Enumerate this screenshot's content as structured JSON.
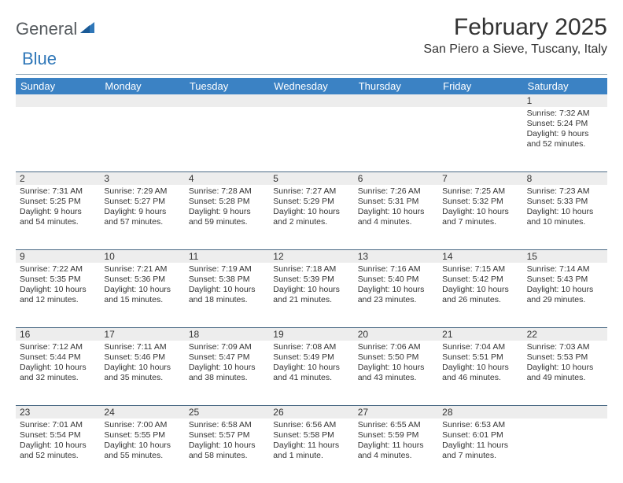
{
  "logo": {
    "text1": "General",
    "text2": "Blue"
  },
  "title": "February 2025",
  "location": "San Piero a Sieve, Tuscany, Italy",
  "colors": {
    "header_bg": "#3b82c4",
    "header_text": "#ffffff",
    "daynum_bg": "#ededed",
    "rule": "#4a6a85",
    "logo_blue": "#2f77b8",
    "logo_gray": "#555a5e"
  },
  "daysOfWeek": [
    "Sunday",
    "Monday",
    "Tuesday",
    "Wednesday",
    "Thursday",
    "Friday",
    "Saturday"
  ],
  "weeks": [
    [
      {
        "n": "",
        "sr": "",
        "ss": "",
        "dl": ""
      },
      {
        "n": "",
        "sr": "",
        "ss": "",
        "dl": ""
      },
      {
        "n": "",
        "sr": "",
        "ss": "",
        "dl": ""
      },
      {
        "n": "",
        "sr": "",
        "ss": "",
        "dl": ""
      },
      {
        "n": "",
        "sr": "",
        "ss": "",
        "dl": ""
      },
      {
        "n": "",
        "sr": "",
        "ss": "",
        "dl": ""
      },
      {
        "n": "1",
        "sr": "Sunrise: 7:32 AM",
        "ss": "Sunset: 5:24 PM",
        "dl": "Daylight: 9 hours and 52 minutes."
      }
    ],
    [
      {
        "n": "2",
        "sr": "Sunrise: 7:31 AM",
        "ss": "Sunset: 5:25 PM",
        "dl": "Daylight: 9 hours and 54 minutes."
      },
      {
        "n": "3",
        "sr": "Sunrise: 7:29 AM",
        "ss": "Sunset: 5:27 PM",
        "dl": "Daylight: 9 hours and 57 minutes."
      },
      {
        "n": "4",
        "sr": "Sunrise: 7:28 AM",
        "ss": "Sunset: 5:28 PM",
        "dl": "Daylight: 9 hours and 59 minutes."
      },
      {
        "n": "5",
        "sr": "Sunrise: 7:27 AM",
        "ss": "Sunset: 5:29 PM",
        "dl": "Daylight: 10 hours and 2 minutes."
      },
      {
        "n": "6",
        "sr": "Sunrise: 7:26 AM",
        "ss": "Sunset: 5:31 PM",
        "dl": "Daylight: 10 hours and 4 minutes."
      },
      {
        "n": "7",
        "sr": "Sunrise: 7:25 AM",
        "ss": "Sunset: 5:32 PM",
        "dl": "Daylight: 10 hours and 7 minutes."
      },
      {
        "n": "8",
        "sr": "Sunrise: 7:23 AM",
        "ss": "Sunset: 5:33 PM",
        "dl": "Daylight: 10 hours and 10 minutes."
      }
    ],
    [
      {
        "n": "9",
        "sr": "Sunrise: 7:22 AM",
        "ss": "Sunset: 5:35 PM",
        "dl": "Daylight: 10 hours and 12 minutes."
      },
      {
        "n": "10",
        "sr": "Sunrise: 7:21 AM",
        "ss": "Sunset: 5:36 PM",
        "dl": "Daylight: 10 hours and 15 minutes."
      },
      {
        "n": "11",
        "sr": "Sunrise: 7:19 AM",
        "ss": "Sunset: 5:38 PM",
        "dl": "Daylight: 10 hours and 18 minutes."
      },
      {
        "n": "12",
        "sr": "Sunrise: 7:18 AM",
        "ss": "Sunset: 5:39 PM",
        "dl": "Daylight: 10 hours and 21 minutes."
      },
      {
        "n": "13",
        "sr": "Sunrise: 7:16 AM",
        "ss": "Sunset: 5:40 PM",
        "dl": "Daylight: 10 hours and 23 minutes."
      },
      {
        "n": "14",
        "sr": "Sunrise: 7:15 AM",
        "ss": "Sunset: 5:42 PM",
        "dl": "Daylight: 10 hours and 26 minutes."
      },
      {
        "n": "15",
        "sr": "Sunrise: 7:14 AM",
        "ss": "Sunset: 5:43 PM",
        "dl": "Daylight: 10 hours and 29 minutes."
      }
    ],
    [
      {
        "n": "16",
        "sr": "Sunrise: 7:12 AM",
        "ss": "Sunset: 5:44 PM",
        "dl": "Daylight: 10 hours and 32 minutes."
      },
      {
        "n": "17",
        "sr": "Sunrise: 7:11 AM",
        "ss": "Sunset: 5:46 PM",
        "dl": "Daylight: 10 hours and 35 minutes."
      },
      {
        "n": "18",
        "sr": "Sunrise: 7:09 AM",
        "ss": "Sunset: 5:47 PM",
        "dl": "Daylight: 10 hours and 38 minutes."
      },
      {
        "n": "19",
        "sr": "Sunrise: 7:08 AM",
        "ss": "Sunset: 5:49 PM",
        "dl": "Daylight: 10 hours and 41 minutes."
      },
      {
        "n": "20",
        "sr": "Sunrise: 7:06 AM",
        "ss": "Sunset: 5:50 PM",
        "dl": "Daylight: 10 hours and 43 minutes."
      },
      {
        "n": "21",
        "sr": "Sunrise: 7:04 AM",
        "ss": "Sunset: 5:51 PM",
        "dl": "Daylight: 10 hours and 46 minutes."
      },
      {
        "n": "22",
        "sr": "Sunrise: 7:03 AM",
        "ss": "Sunset: 5:53 PM",
        "dl": "Daylight: 10 hours and 49 minutes."
      }
    ],
    [
      {
        "n": "23",
        "sr": "Sunrise: 7:01 AM",
        "ss": "Sunset: 5:54 PM",
        "dl": "Daylight: 10 hours and 52 minutes."
      },
      {
        "n": "24",
        "sr": "Sunrise: 7:00 AM",
        "ss": "Sunset: 5:55 PM",
        "dl": "Daylight: 10 hours and 55 minutes."
      },
      {
        "n": "25",
        "sr": "Sunrise: 6:58 AM",
        "ss": "Sunset: 5:57 PM",
        "dl": "Daylight: 10 hours and 58 minutes."
      },
      {
        "n": "26",
        "sr": "Sunrise: 6:56 AM",
        "ss": "Sunset: 5:58 PM",
        "dl": "Daylight: 11 hours and 1 minute."
      },
      {
        "n": "27",
        "sr": "Sunrise: 6:55 AM",
        "ss": "Sunset: 5:59 PM",
        "dl": "Daylight: 11 hours and 4 minutes."
      },
      {
        "n": "28",
        "sr": "Sunrise: 6:53 AM",
        "ss": "Sunset: 6:01 PM",
        "dl": "Daylight: 11 hours and 7 minutes."
      },
      {
        "n": "",
        "sr": "",
        "ss": "",
        "dl": ""
      }
    ]
  ]
}
